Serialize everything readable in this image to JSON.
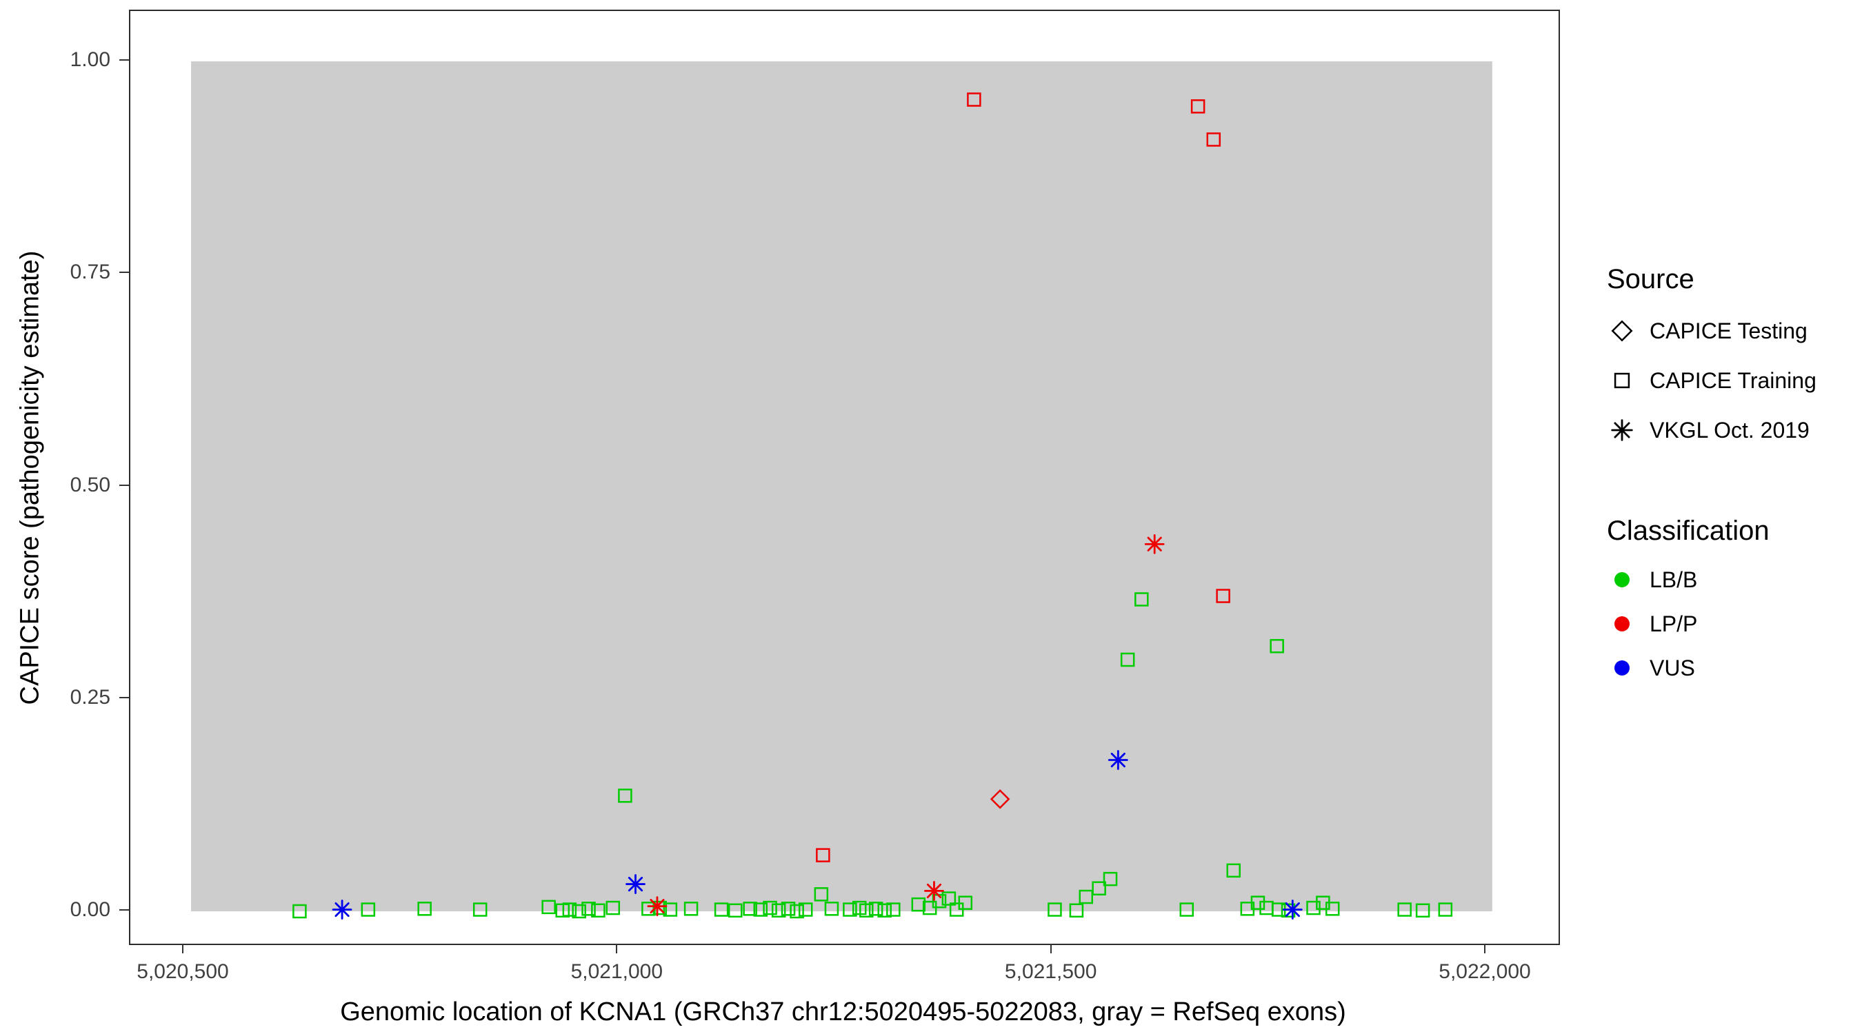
{
  "figure": {
    "background": "#ffffff",
    "panel_border_color": "#2b2b2b",
    "tick_color": "#333333",
    "tick_label_color": "#404040"
  },
  "legend": {
    "source": {
      "title": "Source",
      "items": [
        {
          "label": "CAPICE Testing",
          "marker": "diamond-open",
          "color": "#000000"
        },
        {
          "label": "CAPICE Training",
          "marker": "square-open",
          "color": "#000000"
        },
        {
          "label": "VKGL Oct. 2019",
          "marker": "asterisk",
          "color": "#000000"
        }
      ]
    },
    "classification": {
      "title": "Classification",
      "items": [
        {
          "label": "LB/B",
          "marker": "circle-filled",
          "color": "#00cc00"
        },
        {
          "label": "LP/P",
          "marker": "circle-filled",
          "color": "#ee0000"
        },
        {
          "label": "VUS",
          "marker": "circle-filled",
          "color": "#0000ee"
        }
      ]
    }
  },
  "chart_data": {
    "type": "scatter",
    "title": "",
    "xlabel": "Genomic location of KCNA1 (GRCh37 chr12:5020495-5022083, gray = RefSeq exons)",
    "ylabel": "CAPICE score (pathogenicity estimate)",
    "x_ticks": [
      {
        "value": 5020500,
        "label": "5,020,500"
      },
      {
        "value": 5021000,
        "label": "5,021,000"
      },
      {
        "value": 5021500,
        "label": "5,021,500"
      },
      {
        "value": 5022000,
        "label": "5,022,000"
      }
    ],
    "y_ticks": [
      {
        "value": 0.0,
        "label": "0.00"
      },
      {
        "value": 0.25,
        "label": "0.25"
      },
      {
        "value": 0.5,
        "label": "0.50"
      },
      {
        "value": 0.75,
        "label": "0.75"
      },
      {
        "value": 1.0,
        "label": "1.00"
      }
    ],
    "exon_region": {
      "x_start": 5020508,
      "x_end": 5022007,
      "y_bottom": 0.0,
      "y_top": 1.0,
      "fill": "#cdcdcd"
    },
    "colors": {
      "LB/B": "#00cc00",
      "LP/P": "#ee0000",
      "VUS": "#0000ee"
    },
    "series": [
      {
        "name": "CAPICE Training - LB/B",
        "source": "CAPICE Training",
        "classification": "LB/B",
        "marker": "square-open",
        "color": "#00cc00",
        "points": [
          [
            5020633,
            0.0
          ],
          [
            5020712,
            0.002
          ],
          [
            5020777,
            0.003
          ],
          [
            5020841,
            0.002
          ],
          [
            5020920,
            0.005
          ],
          [
            5020936,
            0.001
          ],
          [
            5020944,
            0.002
          ],
          [
            5020955,
            0.0
          ],
          [
            5020966,
            0.003
          ],
          [
            5020977,
            0.001
          ],
          [
            5020994,
            0.004
          ],
          [
            5021008,
            0.136
          ],
          [
            5021035,
            0.003
          ],
          [
            5021048,
            0.004
          ],
          [
            5021060,
            0.002
          ],
          [
            5021084,
            0.003
          ],
          [
            5021119,
            0.002
          ],
          [
            5021135,
            0.001
          ],
          [
            5021152,
            0.003
          ],
          [
            5021164,
            0.002
          ],
          [
            5021175,
            0.004
          ],
          [
            5021185,
            0.001
          ],
          [
            5021196,
            0.003
          ],
          [
            5021206,
            0.0
          ],
          [
            5021216,
            0.002
          ],
          [
            5021234,
            0.02
          ],
          [
            5021246,
            0.003
          ],
          [
            5021267,
            0.002
          ],
          [
            5021278,
            0.004
          ],
          [
            5021286,
            0.001
          ],
          [
            5021297,
            0.003
          ],
          [
            5021307,
            0.001
          ],
          [
            5021317,
            0.002
          ],
          [
            5021346,
            0.008
          ],
          [
            5021359,
            0.004
          ],
          [
            5021370,
            0.012
          ],
          [
            5021381,
            0.015
          ],
          [
            5021390,
            0.002
          ],
          [
            5021400,
            0.01
          ],
          [
            5021503,
            0.002
          ],
          [
            5021528,
            0.001
          ],
          [
            5021539,
            0.017
          ],
          [
            5021554,
            0.027
          ],
          [
            5021567,
            0.038
          ],
          [
            5021587,
            0.296
          ],
          [
            5021603,
            0.367
          ],
          [
            5021655,
            0.002
          ],
          [
            5021709,
            0.048
          ],
          [
            5021725,
            0.003
          ],
          [
            5021737,
            0.01
          ],
          [
            5021747,
            0.004
          ],
          [
            5021761,
            0.002
          ],
          [
            5021772,
            0.001
          ],
          [
            5021759,
            0.312
          ],
          [
            5021801,
            0.004
          ],
          [
            5021812,
            0.01
          ],
          [
            5021823,
            0.003
          ],
          [
            5021906,
            0.002
          ],
          [
            5021927,
            0.001
          ],
          [
            5021953,
            0.002
          ]
        ]
      },
      {
        "name": "CAPICE Training - LP/P",
        "source": "CAPICE Training",
        "classification": "LP/P",
        "marker": "square-open",
        "color": "#ee0000",
        "points": [
          [
            5021410,
            0.955
          ],
          [
            5021668,
            0.947
          ],
          [
            5021686,
            0.908
          ],
          [
            5021697,
            0.371
          ],
          [
            5021236,
            0.066
          ]
        ]
      },
      {
        "name": "CAPICE Testing - LP/P",
        "source": "CAPICE Testing",
        "classification": "LP/P",
        "marker": "diamond-open",
        "color": "#ee0000",
        "points": [
          [
            5021440,
            0.132
          ]
        ]
      },
      {
        "name": "VKGL Oct. 2019 - LP/P",
        "source": "VKGL Oct. 2019",
        "classification": "LP/P",
        "marker": "asterisk",
        "color": "#ee0000",
        "points": [
          [
            5021618,
            0.432
          ],
          [
            5021364,
            0.024
          ],
          [
            5021045,
            0.006
          ]
        ]
      },
      {
        "name": "VKGL Oct. 2019 - VUS",
        "source": "VKGL Oct. 2019",
        "classification": "VUS",
        "marker": "asterisk",
        "color": "#0000ee",
        "points": [
          [
            5020682,
            0.002
          ],
          [
            5021020,
            0.032
          ],
          [
            5021576,
            0.178
          ],
          [
            5021777,
            0.002
          ]
        ]
      }
    ]
  }
}
